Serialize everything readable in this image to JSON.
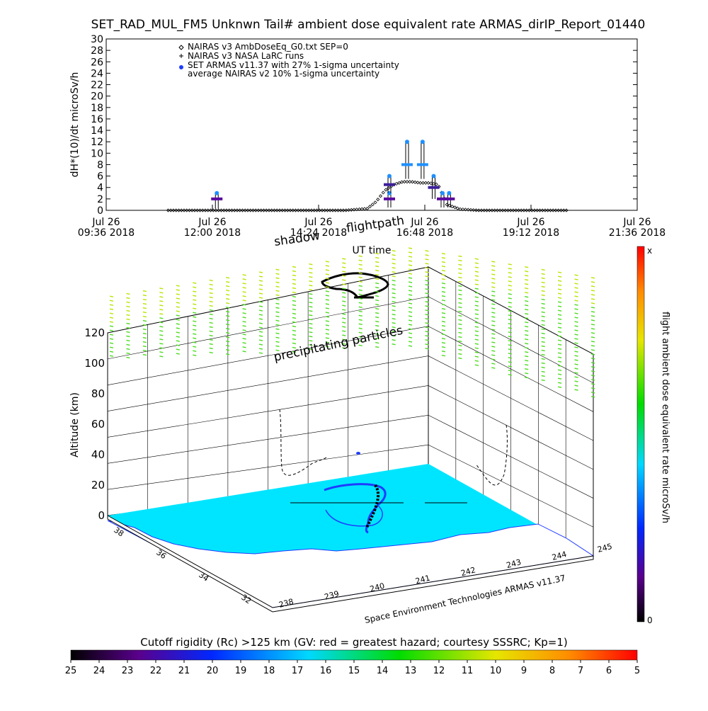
{
  "title": "SET_RAD_MUL_FM5 Unknwn Tail#  ambient dose equivalent rate ARMAS_dirIP_Report_01440",
  "chart_data": [
    {
      "type": "scatter",
      "ylabel": "dH*(10)/dt microSv/h",
      "xlabel": "UT time",
      "ylim": [
        0,
        30
      ],
      "y_ticks": [
        "0",
        "2",
        "4",
        "6",
        "8",
        "10",
        "12",
        "14",
        "16",
        "18",
        "20",
        "22",
        "24",
        "26",
        "28",
        "30"
      ],
      "x_ticks": [
        {
          "line1": "Jul 26",
          "line2": "09:36 2018"
        },
        {
          "line1": "Jul 26",
          "line2": "12:00 2018"
        },
        {
          "line1": "Jul 26",
          "line2": "14:24 2018"
        },
        {
          "line1": "Jul 26",
          "line2": "16:48 2018"
        },
        {
          "line1": "Jul 26",
          "line2": "19:12 2018"
        },
        {
          "line1": "Jul 26",
          "line2": "21:36 2018"
        }
      ],
      "x_range_hours": [
        9.6,
        21.6
      ],
      "legend": [
        {
          "marker": "diamond",
          "label": "NAIRAS v3 AmbDoseEq_G0.txt SEP=0"
        },
        {
          "marker": "plus",
          "label": "NAIRAS v3 NASA LaRC runs"
        },
        {
          "marker": "blue-dot",
          "label": "SET ARMAS v11.37 with 27% 1-sigma uncertainty"
        },
        {
          "marker": "none",
          "label": "average NAIRAS v2 10% 1-sigma uncertainty"
        }
      ],
      "series": [
        {
          "name": "NAIRAS v3 AmbDoseEq_G0.txt SEP=0",
          "x_hours": [
            11.0,
            11.5,
            12.0,
            12.5,
            13.0,
            13.5,
            14.0,
            14.5,
            15.0,
            15.5,
            15.7,
            15.9,
            16.1,
            16.3,
            16.5,
            16.7,
            16.9,
            17.1,
            17.3,
            17.6,
            18.0,
            18.5,
            19.0,
            19.5,
            20.0
          ],
          "y": [
            0,
            0,
            0,
            0,
            0,
            0,
            0,
            0,
            0,
            0.3,
            1.5,
            3.5,
            4.5,
            5.0,
            5.0,
            4.8,
            4.8,
            4.5,
            1.0,
            0.2,
            0,
            0,
            0,
            0,
            0
          ]
        },
        {
          "name": "SET ARMAS v11.37 with 27% 1-sigma uncertainty",
          "points": [
            {
              "x_hours": 12.1,
              "y": 2.0,
              "lo": 0.3,
              "hi": 3.0
            },
            {
              "x_hours": 16.0,
              "y": 2.0,
              "lo": 0.5,
              "hi": 3.0
            },
            {
              "x_hours": 16.0,
              "y": 4.5,
              "lo": 3.0,
              "hi": 6.0
            },
            {
              "x_hours": 16.4,
              "y": 8.0,
              "lo": 5.5,
              "hi": 12.0
            },
            {
              "x_hours": 16.75,
              "y": 8.0,
              "lo": 5.5,
              "hi": 12.0
            },
            {
              "x_hours": 17.0,
              "y": 4.0,
              "lo": 2.0,
              "hi": 6.0
            },
            {
              "x_hours": 17.2,
              "y": 2.0,
              "lo": 0.5,
              "hi": 3.0
            },
            {
              "x_hours": 17.35,
              "y": 2.0,
              "lo": 0.5,
              "hi": 3.0
            }
          ]
        }
      ]
    },
    {
      "type": "3d-map",
      "zlabel": "Altitude (km)",
      "z_ticks": [
        "0",
        "20",
        "40",
        "60",
        "80",
        "100",
        "120"
      ],
      "lon_ticks": [
        "238",
        "239",
        "240",
        "241",
        "242",
        "243",
        "244",
        "245"
      ],
      "lat_ticks": [
        "32",
        "34",
        "36",
        "38"
      ],
      "annotations": {
        "shadow": "shadow",
        "flightpath": "flightpath",
        "particles": "precipitating particles",
        "credit": "Space Environment Technologies ARMAS v11.37"
      },
      "colorbar": {
        "label": "flight ambient dose equivalent rate microSv/h",
        "top": "x",
        "bottom": "0"
      }
    },
    {
      "type": "colorbar",
      "title": "Cutoff rigidity (Rc) >125 km (GV: red = greatest hazard; courtesy SSSRC; Kp=1)",
      "ticks": [
        "25",
        "24",
        "23",
        "22",
        "21",
        "20",
        "19",
        "18",
        "17",
        "16",
        "15",
        "14",
        "13",
        "12",
        "11",
        "10",
        "9",
        "8",
        "7",
        "6",
        "5"
      ]
    }
  ],
  "colors": {
    "nairas": "#000000",
    "armas_hi": "#1e90ff",
    "armas_mid": "#1e3cff",
    "armas_lo": "#5a0aa0",
    "ground": "#00e5ff",
    "particles": "#7cdc00"
  }
}
